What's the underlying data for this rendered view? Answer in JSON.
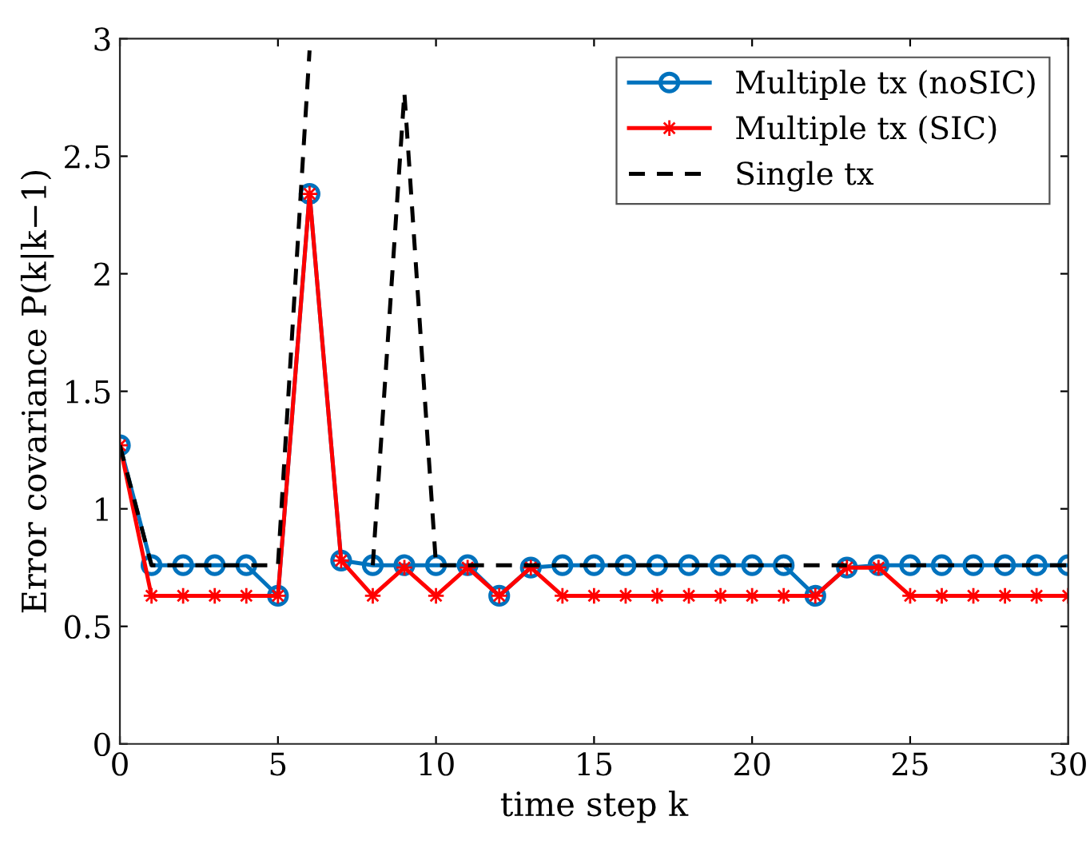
{
  "chart_data": {
    "type": "line",
    "xlabel": "time step k",
    "ylabel": "Error covariance P(k|k−1)",
    "x": [
      0,
      1,
      2,
      3,
      4,
      5,
      6,
      7,
      8,
      9,
      10,
      11,
      12,
      13,
      14,
      15,
      16,
      17,
      18,
      19,
      20,
      21,
      22,
      23,
      24,
      25,
      26,
      27,
      28,
      29,
      30
    ],
    "series": [
      {
        "name": "Multiple tx (noSIC)",
        "color": "#0072bd",
        "marker": "circle",
        "line_style": "solid",
        "values": [
          1.27,
          0.76,
          0.76,
          0.76,
          0.76,
          0.63,
          2.34,
          0.78,
          0.76,
          0.76,
          0.76,
          0.76,
          0.63,
          0.75,
          0.76,
          0.76,
          0.76,
          0.76,
          0.76,
          0.76,
          0.76,
          0.76,
          0.63,
          0.75,
          0.76,
          0.76,
          0.76,
          0.76,
          0.76,
          0.76,
          0.76
        ]
      },
      {
        "name": "Multiple tx (SIC)",
        "color": "#ff0000",
        "marker": "star",
        "line_style": "solid",
        "values": [
          1.27,
          0.63,
          0.63,
          0.63,
          0.63,
          0.63,
          2.34,
          0.78,
          0.63,
          0.75,
          0.63,
          0.75,
          0.63,
          0.75,
          0.63,
          0.63,
          0.63,
          0.63,
          0.63,
          0.63,
          0.63,
          0.63,
          0.63,
          0.75,
          0.75,
          0.63,
          0.63,
          0.63,
          0.63,
          0.63,
          0.63
        ]
      },
      {
        "name": "Single tx",
        "color": "#000000",
        "marker": "none",
        "line_style": "dashed",
        "values": [
          1.27,
          0.76,
          0.76,
          0.76,
          0.76,
          0.76,
          2.95,
          null,
          0.76,
          2.77,
          0.76,
          0.76,
          0.76,
          0.76,
          0.76,
          0.76,
          0.76,
          0.76,
          0.76,
          0.76,
          0.76,
          0.76,
          0.76,
          0.76,
          null,
          0.76,
          0.76,
          0.76,
          0.76,
          0.76,
          0.76
        ]
      }
    ],
    "xlim": [
      0,
      30
    ],
    "xticks": [
      0,
      5,
      10,
      15,
      20,
      25,
      30
    ],
    "ylim": [
      0,
      3
    ],
    "yticks": [
      0,
      0.5,
      1,
      1.5,
      2,
      2.5,
      3
    ],
    "grid": false,
    "legend": "top right"
  }
}
